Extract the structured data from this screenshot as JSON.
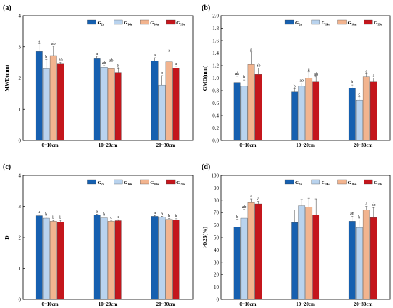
{
  "chart_data": [
    {
      "panel": "(a)",
      "type": "bar",
      "ylabel": "MWD(mm)",
      "ylim": [
        0,
        4
      ],
      "yticks": [
        "0",
        "1",
        "2",
        "3",
        "4"
      ],
      "categories": [
        "0~10cm",
        "10~20cm",
        "20~30cm"
      ],
      "legend_position": "top-right",
      "series": [
        {
          "name": "G2a",
          "name_base": "G",
          "name_sub": "2a",
          "color": "#1660b0",
          "values": [
            2.85,
            2.62,
            2.55
          ],
          "errors": [
            0.25,
            0.08,
            0.1
          ],
          "letters": [
            "a",
            "a",
            "a"
          ]
        },
        {
          "name": "G14a",
          "name_base": "G",
          "name_sub": "14a",
          "color": "#b9d3ee",
          "values": [
            2.3,
            2.35,
            1.78
          ],
          "errors": [
            0.3,
            0.05,
            0.3
          ],
          "letters": [
            "b",
            "ab",
            "b"
          ]
        },
        {
          "name": "G30a",
          "name_base": "G",
          "name_sub": "30a",
          "color": "#f2b48f",
          "values": [
            2.72,
            2.3,
            2.52
          ],
          "errors": [
            0.3,
            0.18,
            0.28
          ],
          "letters": [
            "ab",
            "ab",
            "a"
          ]
        },
        {
          "name": "G39a",
          "name_base": "G",
          "name_sub": "39a",
          "color": "#c4161c",
          "values": [
            2.45,
            2.18,
            2.32
          ],
          "errors": [
            0.05,
            0.12,
            0.06
          ],
          "letters": [
            "ab",
            "b",
            "a"
          ]
        }
      ]
    },
    {
      "panel": "(b)",
      "type": "bar",
      "ylabel": "GMD(mm)",
      "ylim": [
        0,
        2
      ],
      "yticks": [
        "0.0",
        "0.2",
        "0.4",
        "0.6",
        "0.8",
        "1.0",
        "1.2",
        "1.4",
        "1.6",
        "1.8",
        "2.0"
      ],
      "categories": [
        "0~10cm",
        "10~20cm",
        "20~30cm"
      ],
      "legend_position": "top-right",
      "series": [
        {
          "name": "G2a",
          "name_base": "G",
          "name_sub": "2a",
          "color": "#1660b0",
          "values": [
            0.93,
            0.78,
            0.84
          ],
          "errors": [
            0.1,
            0.05,
            0.05
          ],
          "letters": [
            "ab",
            "b",
            "b"
          ]
        },
        {
          "name": "G14a",
          "name_base": "G",
          "name_sub": "14a",
          "color": "#b9d3ee",
          "values": [
            0.87,
            0.87,
            0.65
          ],
          "errors": [
            0.1,
            0.05,
            0.05
          ],
          "letters": [
            "b",
            "ab",
            "c"
          ]
        },
        {
          "name": "G30a",
          "name_base": "G",
          "name_sub": "30a",
          "color": "#f2b48f",
          "values": [
            1.22,
            1.0,
            1.02
          ],
          "errors": [
            0.2,
            0.1,
            0.05
          ],
          "letters": [
            "a",
            "a",
            "a"
          ]
        },
        {
          "name": "G39a",
          "name_base": "G",
          "name_sub": "39a",
          "color": "#c4161c",
          "values": [
            1.06,
            0.94,
            0.94
          ],
          "errors": [
            0.1,
            0.08,
            0.06
          ],
          "letters": [
            "ab",
            "ab",
            "a"
          ]
        }
      ]
    },
    {
      "panel": "(c)",
      "type": "bar",
      "ylabel": "D",
      "ylim": [
        0,
        4
      ],
      "yticks": [
        "0",
        "1",
        "2",
        "3",
        "4"
      ],
      "categories": [
        "0~10cm",
        "10~20cm",
        "20~30cm"
      ],
      "legend_position": "top-right",
      "series": [
        {
          "name": "G2a",
          "name_base": "G",
          "name_sub": "2a",
          "color": "#1660b0",
          "values": [
            2.7,
            2.72,
            2.68
          ],
          "errors": [
            0.03,
            0.03,
            0.03
          ],
          "letters": [
            "a",
            "a",
            "a"
          ]
        },
        {
          "name": "G14a",
          "name_base": "G",
          "name_sub": "14a",
          "color": "#b9d3ee",
          "values": [
            2.62,
            2.63,
            2.65
          ],
          "errors": [
            0.03,
            0.03,
            0.03
          ],
          "letters": [
            "b",
            "b",
            "a"
          ]
        },
        {
          "name": "G30a",
          "name_base": "G",
          "name_sub": "30a",
          "color": "#f2b48f",
          "values": [
            2.52,
            2.52,
            2.58
          ],
          "errors": [
            0.03,
            0.03,
            0.03
          ],
          "letters": [
            "b",
            "c",
            "b"
          ]
        },
        {
          "name": "G39a",
          "name_base": "G",
          "name_sub": "39a",
          "color": "#c4161c",
          "values": [
            2.5,
            2.54,
            2.57
          ],
          "errors": [
            0.05,
            0.03,
            0.03
          ],
          "letters": [
            "b",
            "c",
            "b"
          ]
        }
      ]
    },
    {
      "panel": "(d)",
      "type": "bar",
      "ylabel": ">0.25(%)",
      "ylim": [
        0,
        100
      ],
      "yticks": [
        "0",
        "10",
        "20",
        "30",
        "40",
        "50",
        "60",
        "70",
        "80",
        "90",
        "100"
      ],
      "categories": [
        "0~10cm",
        "10~20cm",
        "20~30cm"
      ],
      "legend_position": "top-right",
      "series": [
        {
          "name": "G2a",
          "name_base": "G",
          "name_sub": "2a",
          "color": "#1660b0",
          "values": [
            58.5,
            62,
            63
          ],
          "errors": [
            6,
            10,
            4
          ],
          "letters": [
            "b",
            "",
            "ab"
          ]
        },
        {
          "name": "G14a",
          "name_base": "G",
          "name_sub": "14a",
          "color": "#b9d3ee",
          "values": [
            65.5,
            75.5,
            58
          ],
          "errors": [
            7,
            5,
            6
          ],
          "letters": [
            "ab",
            "",
            "b"
          ]
        },
        {
          "name": "G30a",
          "name_base": "G",
          "name_sub": "30a",
          "color": "#f2b48f",
          "values": [
            78,
            74.5,
            72
          ],
          "errors": [
            3,
            7,
            3
          ],
          "letters": [
            "a",
            "",
            "a"
          ]
        },
        {
          "name": "G39a",
          "name_base": "G",
          "name_sub": "39a",
          "color": "#c4161c",
          "values": [
            77,
            68,
            66
          ],
          "errors": [
            2,
            13,
            8
          ],
          "letters": [
            "a",
            "",
            "ab"
          ]
        }
      ]
    }
  ]
}
